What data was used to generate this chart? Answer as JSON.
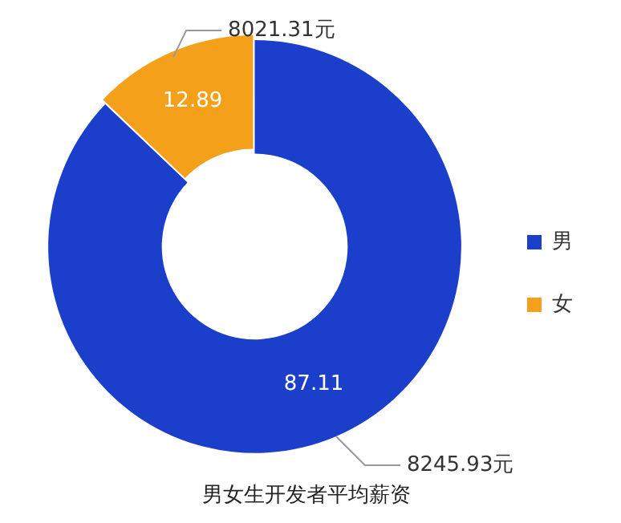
{
  "chart_data": {
    "type": "donut",
    "title": "男女生开发者平均薪资",
    "categories": [
      "男",
      "女"
    ],
    "values": [
      87.11,
      12.89
    ],
    "colors": [
      "#1c3fcb",
      "#f5a01a"
    ],
    "data_labels": true,
    "legend": "right",
    "annotations": [
      {
        "text": "8245.93元",
        "x": "男"
      },
      {
        "text": "8021.31元",
        "x": "女"
      }
    ]
  }
}
